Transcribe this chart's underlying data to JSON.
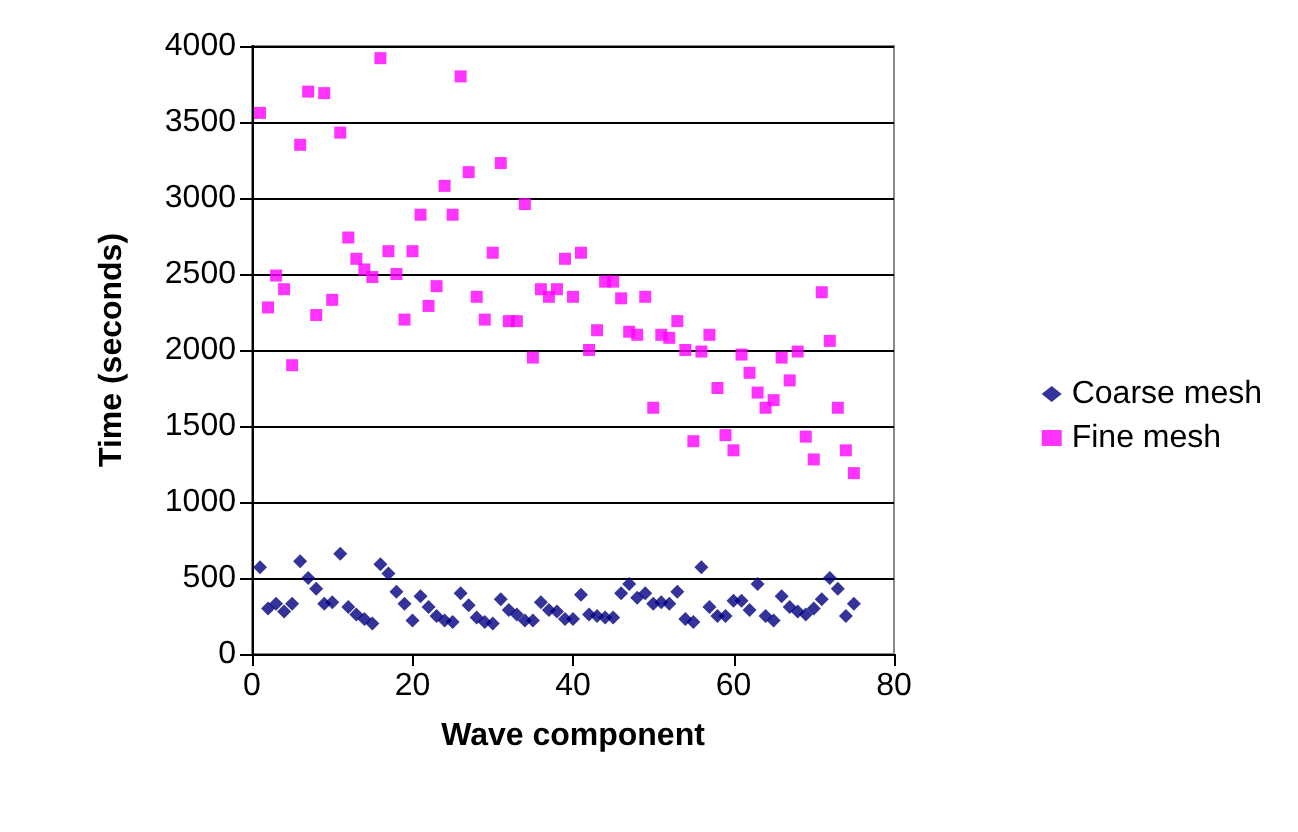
{
  "chart_data": {
    "type": "scatter",
    "xlabel": "Wave component",
    "ylabel": "Time (seconds)",
    "x": [
      1,
      2,
      3,
      4,
      5,
      6,
      7,
      8,
      9,
      10,
      11,
      12,
      13,
      14,
      15,
      16,
      17,
      18,
      19,
      20,
      21,
      22,
      23,
      24,
      25,
      26,
      27,
      28,
      29,
      30,
      31,
      32,
      33,
      34,
      35,
      36,
      37,
      38,
      39,
      40,
      41,
      42,
      43,
      44,
      45,
      46,
      47,
      48,
      49,
      50,
      51,
      52,
      53,
      54,
      55,
      56,
      57,
      58,
      59,
      60,
      61,
      62,
      63,
      64,
      65,
      66,
      67,
      68,
      69,
      70,
      71,
      72,
      73,
      74,
      75
    ],
    "series": [
      {
        "name": "Coarse mesh",
        "color": "#000080",
        "marker": "diamond",
        "values": [
          570,
          300,
          330,
          280,
          330,
          610,
          500,
          430,
          330,
          340,
          660,
          310,
          260,
          230,
          200,
          590,
          530,
          410,
          330,
          220,
          380,
          310,
          250,
          220,
          210,
          400,
          320,
          240,
          210,
          200,
          360,
          290,
          260,
          220,
          220,
          340,
          290,
          280,
          230,
          230,
          390,
          260,
          250,
          240,
          240,
          400,
          460,
          370,
          400,
          330,
          340,
          330,
          410,
          230,
          210,
          570,
          310,
          250,
          250,
          350,
          350,
          290,
          460,
          250,
          220,
          380,
          310,
          280,
          260,
          300,
          360,
          500,
          430,
          250,
          330
        ]
      },
      {
        "name": "Fine mesh",
        "color": "#ff00ff",
        "marker": "square",
        "values": [
          3560,
          2280,
          2490,
          2400,
          1900,
          3350,
          3700,
          2230,
          3690,
          2330,
          3430,
          2740,
          2600,
          2530,
          2480,
          3920,
          2650,
          2500,
          2200,
          2650,
          2890,
          2290,
          2420,
          3080,
          2890,
          3800,
          3170,
          2350,
          2200,
          2640,
          3230,
          2190,
          2190,
          2960,
          1950,
          2400,
          2350,
          2400,
          2600,
          2350,
          2640,
          2000,
          2130,
          2450,
          2450,
          2340,
          2120,
          2100,
          2350,
          1620,
          2100,
          2080,
          2190,
          2000,
          1400,
          1990,
          2100,
          1750,
          1440,
          1340,
          1970,
          1850,
          1720,
          1620,
          1670,
          1950,
          1800,
          1990,
          1430,
          1280,
          2380,
          2060,
          1620,
          1340,
          1190
        ]
      }
    ],
    "xlim": [
      0,
      80
    ],
    "xticks": [
      0,
      20,
      40,
      60,
      80
    ],
    "ylim": [
      0,
      4000
    ],
    "yticks": [
      0,
      500,
      1000,
      1500,
      2000,
      2500,
      3000,
      3500,
      4000
    ],
    "grid": "y",
    "legend": "right"
  }
}
